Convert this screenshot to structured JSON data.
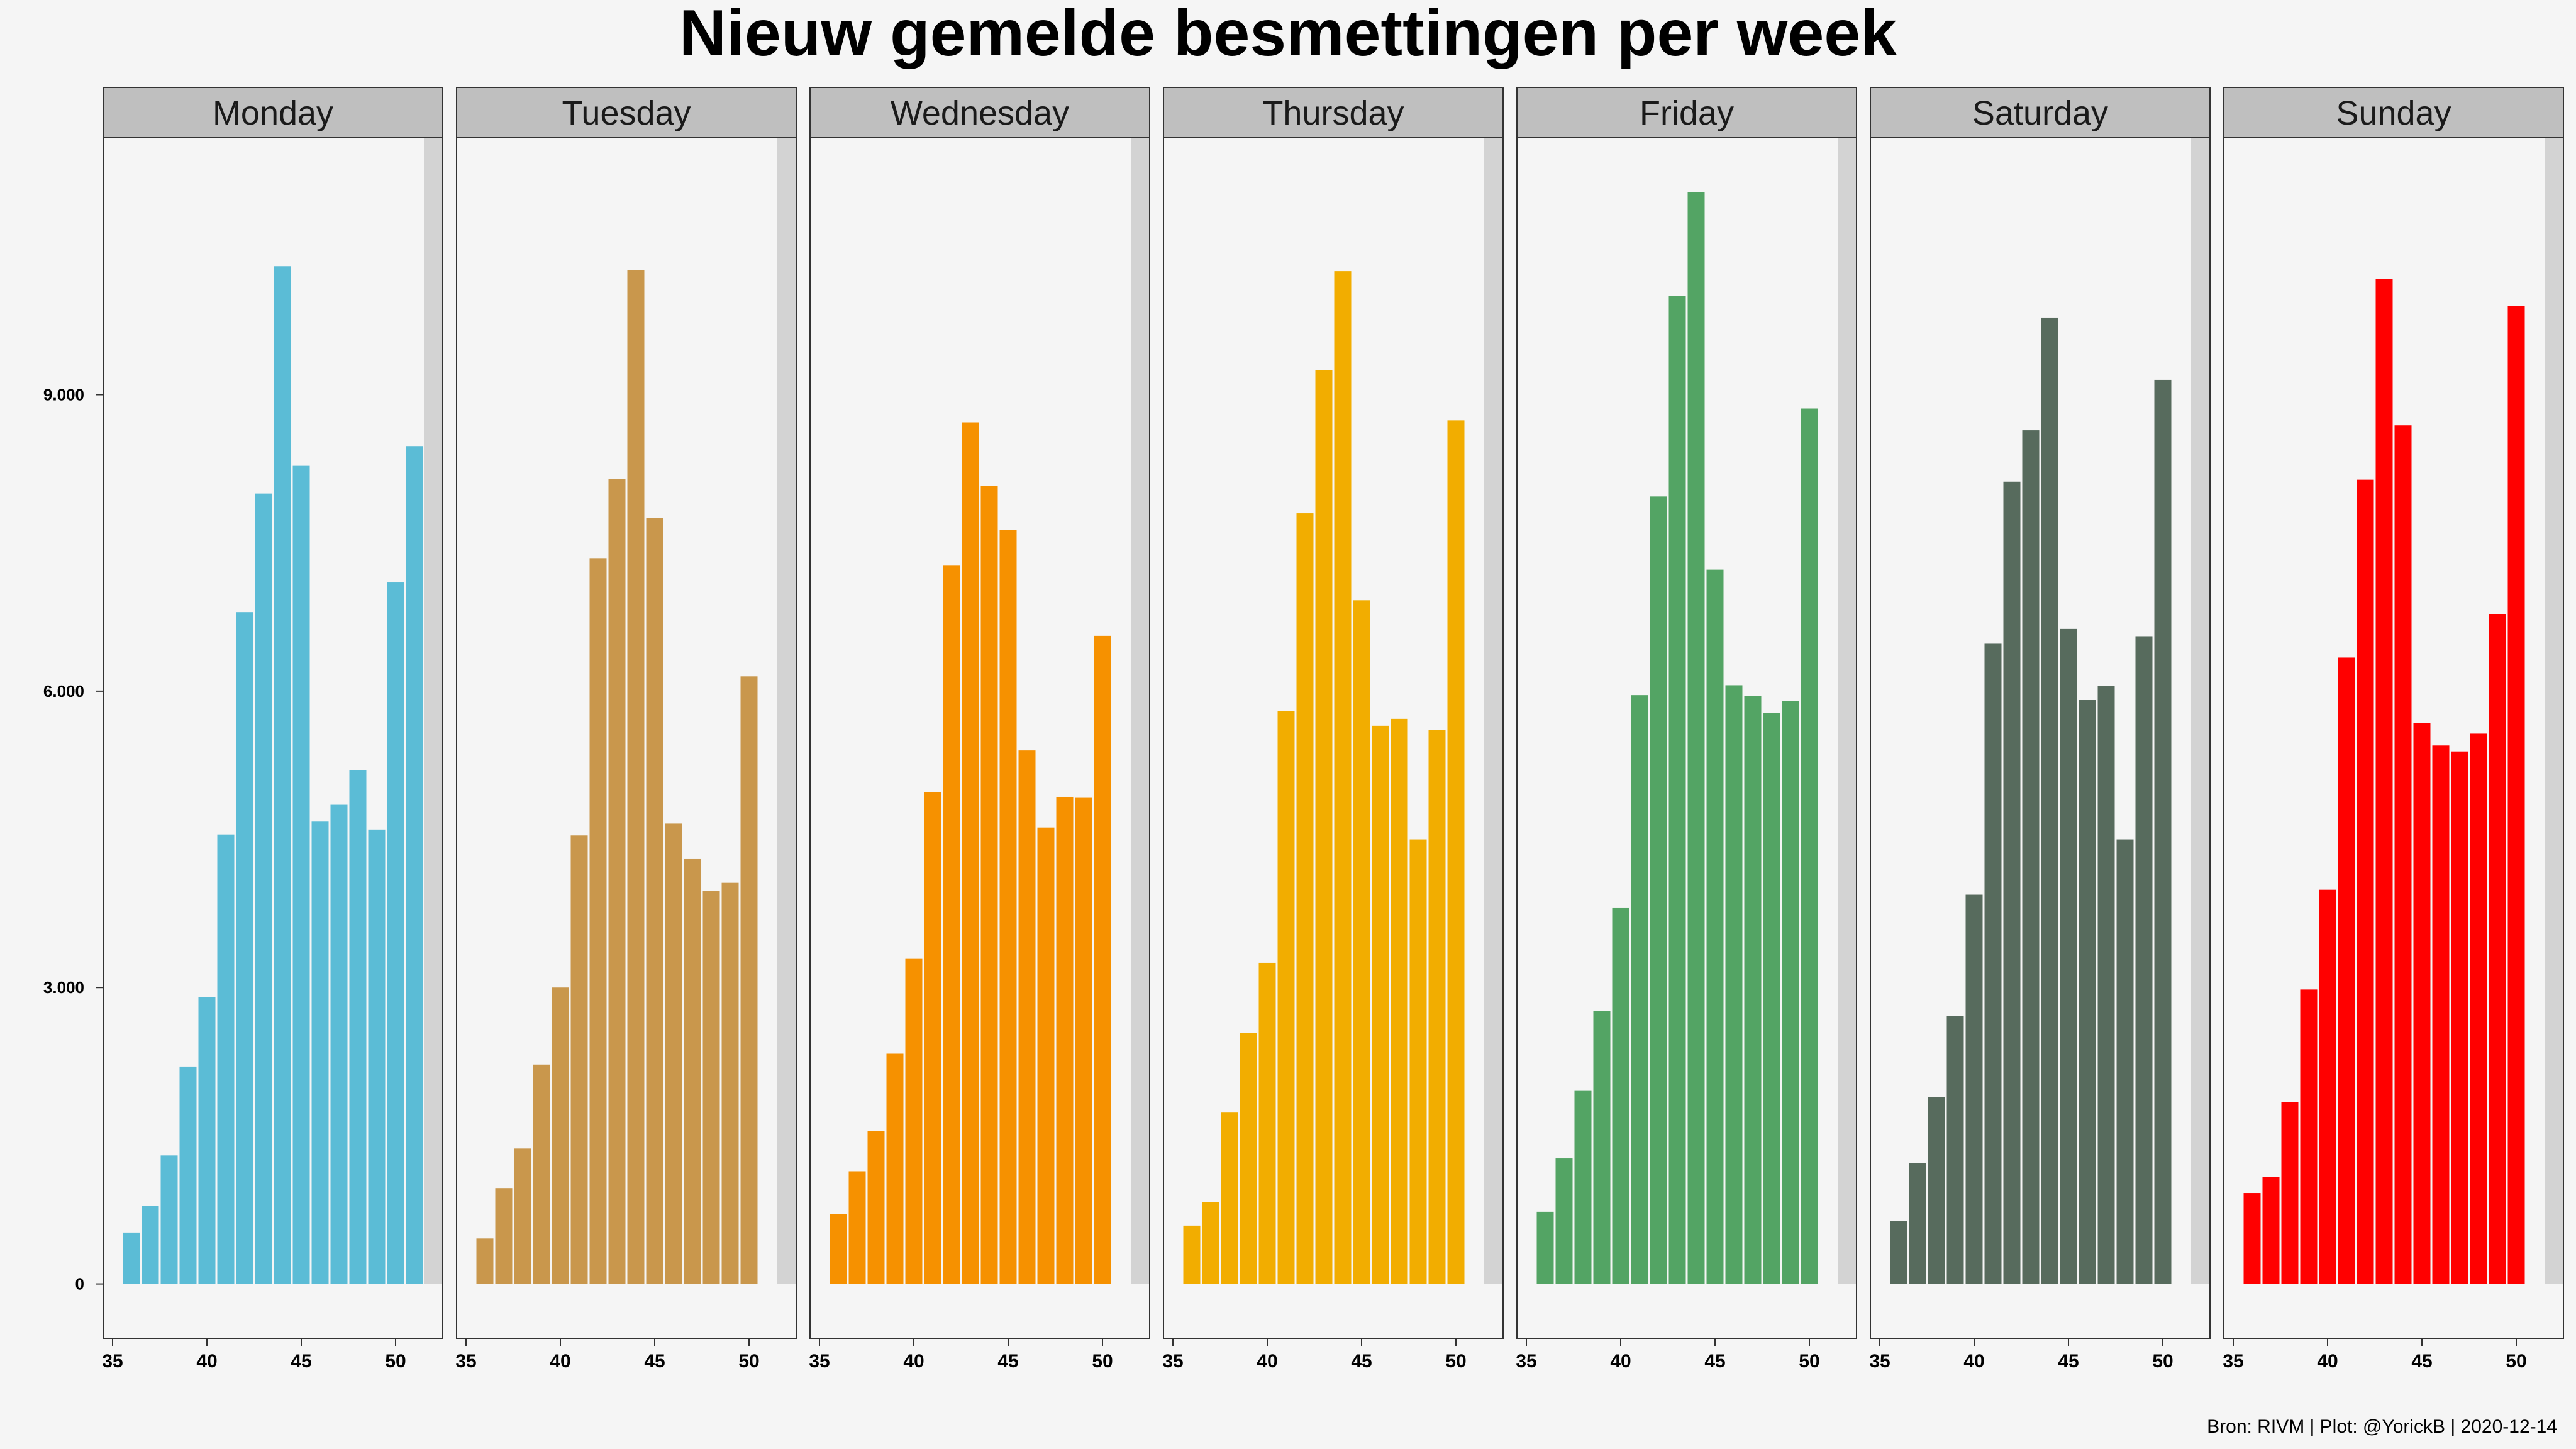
{
  "chart_data": {
    "type": "bar",
    "title": "Nieuw gemelde besmettingen per week",
    "caption": "Bron: RIVM | Plot: @YorickB |  2020-12-14",
    "xlabel": "",
    "ylabel": "",
    "xlim": [
      34.5,
      52.5
    ],
    "ylim": [
      -550,
      11600
    ],
    "x_ticks": [
      35,
      40,
      45,
      50
    ],
    "x_tick_labels": [
      "35",
      "40",
      "45",
      "50"
    ],
    "y_ticks": [
      0,
      3000,
      6000,
      9000
    ],
    "y_tick_labels": [
      "0",
      "3.000",
      "6.000",
      "9.000"
    ],
    "grid": false,
    "legend": "none",
    "highlight": {
      "week": 52,
      "color": "#d3d3d3"
    },
    "x": [
      36,
      37,
      38,
      39,
      40,
      41,
      42,
      43,
      44,
      45,
      46,
      47,
      48,
      49,
      50,
      51
    ],
    "series": [
      {
        "name": "Monday",
        "color": "#5bbcd6",
        "values": [
          520,
          790,
          1300,
          2200,
          2900,
          4550,
          6800,
          8000,
          10300,
          8280,
          4680,
          4850,
          5200,
          4600,
          7100,
          8480
        ]
      },
      {
        "name": "Tuesday",
        "color": "#c9974c",
        "values": [
          460,
          970,
          1370,
          2220,
          3000,
          4540,
          7340,
          8150,
          10260,
          7750,
          4660,
          4300,
          3980,
          4060,
          6150,
          null
        ]
      },
      {
        "name": "Wednesday",
        "color": "#f69100",
        "values": [
          710,
          1140,
          1550,
          2330,
          3290,
          4980,
          7270,
          8720,
          8080,
          7630,
          5400,
          4620,
          4930,
          4920,
          6560,
          null
        ]
      },
      {
        "name": "Thursday",
        "color": "#f2ad00",
        "values": [
          590,
          830,
          1740,
          2540,
          3250,
          5800,
          7800,
          9250,
          10250,
          6920,
          5650,
          5720,
          4500,
          5610,
          8740,
          null
        ]
      },
      {
        "name": "Friday",
        "color": "#53a464",
        "values": [
          730,
          1270,
          1960,
          2760,
          3810,
          5960,
          7970,
          10000,
          11050,
          7230,
          6060,
          5950,
          5780,
          5900,
          8860,
          null
        ]
      },
      {
        "name": "Saturday",
        "color": "#576b5d",
        "values": [
          640,
          1220,
          1890,
          2710,
          3940,
          6480,
          8120,
          8640,
          9780,
          6630,
          5910,
          6050,
          4500,
          6550,
          9150,
          null
        ]
      },
      {
        "name": "Sunday",
        "color": "#ff0000",
        "values": [
          920,
          1080,
          1840,
          2980,
          3990,
          6340,
          8140,
          10170,
          8690,
          5680,
          5450,
          5390,
          5570,
          6780,
          9900,
          null
        ]
      }
    ]
  }
}
